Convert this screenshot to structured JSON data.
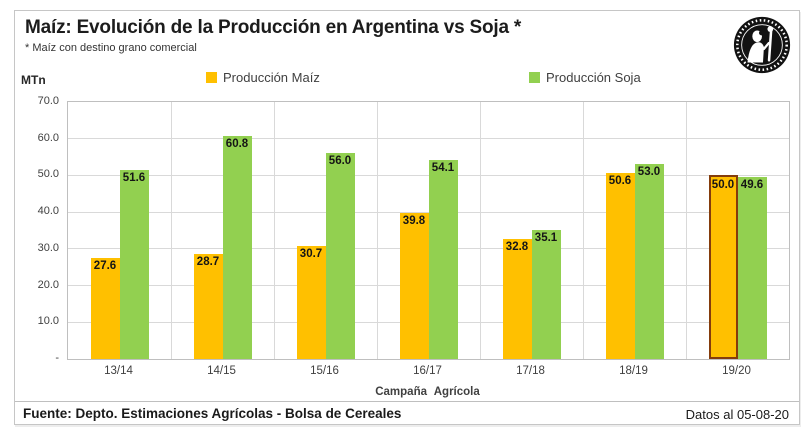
{
  "header": {
    "title": "Maíz: Evolución de la Producción en Argentina vs Soja *",
    "subtitle": "* Maíz con destino grano comercial"
  },
  "logo": {
    "name": "Bolsa de Cereales circular seal",
    "bg": "#121212",
    "fg": "#ffffff"
  },
  "chart_data": {
    "type": "bar",
    "title": "Maíz: Evolución de la Producción en Argentina vs Soja *",
    "categories": [
      "13/14",
      "14/15",
      "15/16",
      "16/17",
      "17/18",
      "18/19",
      "19/20"
    ],
    "series": [
      {
        "name": "Producción Maíz",
        "color": "#FFC000",
        "values": [
          27.6,
          28.7,
          30.7,
          39.8,
          32.8,
          50.6,
          50.0
        ]
      },
      {
        "name": "Producción Soja",
        "color": "#92D050",
        "values": [
          51.6,
          60.8,
          56.0,
          54.1,
          35.1,
          53.0,
          49.6
        ]
      }
    ],
    "xlabel": "Campaña Agrícola",
    "ylabel": "MTn",
    "ylim": [
      0,
      70
    ],
    "ytick_labels": [
      "70.0",
      "60.0",
      "50.0",
      "40.0",
      "30.0",
      "20.0",
      "10.0",
      "-"
    ],
    "grid": true,
    "legend_position": "top",
    "value_labels": "inside-end",
    "highlight": {
      "series": "Producción Maíz",
      "category": "19/20",
      "border_color": "#843C0C"
    }
  },
  "footer": {
    "source": "Fuente: Depto. Estimaciones Agrícolas - Bolsa de Cereales",
    "note": "Datos al 05-08-20"
  }
}
